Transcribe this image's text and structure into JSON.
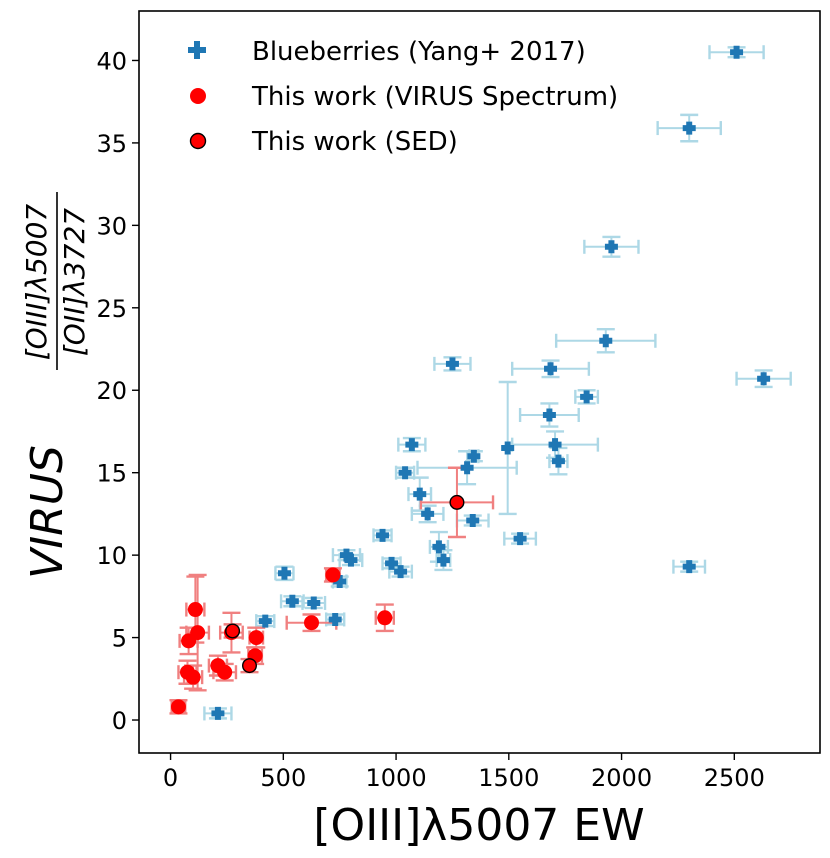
{
  "chart_data": {
    "type": "scatter",
    "xlabel": "[OIII]λ5007 EW",
    "ylabel_main": "VIRUS",
    "ylabel_num": "[OIII]λ5007",
    "ylabel_den": "[OII]λ3727",
    "xlim": [
      -140,
      2880
    ],
    "ylim": [
      -2,
      43
    ],
    "xticks": [
      0,
      500,
      1000,
      1500,
      2000,
      2500
    ],
    "yticks": [
      0,
      5,
      10,
      15,
      20,
      25,
      30,
      35,
      40
    ],
    "legend_position": "top-left",
    "series": [
      {
        "name": "Blueberries (Yang+ 2017)",
        "marker": "plus",
        "color": "#1f77b4",
        "err_color": "#add8e6",
        "points": [
          {
            "x": 2510,
            "y": 40.5,
            "xerr": 120,
            "yerr": 0.3
          },
          {
            "x": 2300,
            "y": 35.9,
            "xerr": 140,
            "yerr": 0.8
          },
          {
            "x": 1955,
            "y": 28.7,
            "xerr": 120,
            "yerr": 0.6
          },
          {
            "x": 1930,
            "y": 23.0,
            "xerr": 220,
            "yerr": 0.7
          },
          {
            "x": 2630,
            "y": 20.7,
            "xerr": 120,
            "yerr": 0.5
          },
          {
            "x": 1250,
            "y": 21.6,
            "xerr": 80,
            "yerr": 0.4
          },
          {
            "x": 1685,
            "y": 21.3,
            "xerr": 170,
            "yerr": 0.5
          },
          {
            "x": 1845,
            "y": 19.6,
            "xerr": 50,
            "yerr": 0.4
          },
          {
            "x": 1680,
            "y": 18.5,
            "xerr": 130,
            "yerr": 0.7
          },
          {
            "x": 1070,
            "y": 16.7,
            "xerr": 60,
            "yerr": 0.4
          },
          {
            "x": 1495,
            "y": 16.5,
            "xerr": 0,
            "yerr": 4.0
          },
          {
            "x": 1705,
            "y": 16.7,
            "xerr": 190,
            "yerr": 0.8
          },
          {
            "x": 1720,
            "y": 15.7,
            "xerr": 40,
            "yerr": 0.8
          },
          {
            "x": 1345,
            "y": 16.0,
            "xerr": 20,
            "yerr": 0.3
          },
          {
            "x": 1315,
            "y": 15.3,
            "xerr": 220,
            "yerr": 1.0
          },
          {
            "x": 1040,
            "y": 15.0,
            "xerr": 40,
            "yerr": 0.3
          },
          {
            "x": 1105,
            "y": 13.7,
            "xerr": 50,
            "yerr": 1.0
          },
          {
            "x": 1140,
            "y": 12.5,
            "xerr": 70,
            "yerr": 0.5
          },
          {
            "x": 1340,
            "y": 12.1,
            "xerr": 70,
            "yerr": 0.3
          },
          {
            "x": 1550,
            "y": 11.0,
            "xerr": 70,
            "yerr": 0.3
          },
          {
            "x": 940,
            "y": 11.2,
            "xerr": 40,
            "yerr": 0.3
          },
          {
            "x": 1190,
            "y": 10.5,
            "xerr": 40,
            "yerr": 0.9
          },
          {
            "x": 1210,
            "y": 9.7,
            "xerr": 30,
            "yerr": 0.6
          },
          {
            "x": 780,
            "y": 10.0,
            "xerr": 60,
            "yerr": 0.3
          },
          {
            "x": 800,
            "y": 9.7,
            "xerr": 50,
            "yerr": 0.3
          },
          {
            "x": 980,
            "y": 9.5,
            "xerr": 40,
            "yerr": 0.3
          },
          {
            "x": 1020,
            "y": 9.0,
            "xerr": 50,
            "yerr": 0.3
          },
          {
            "x": 2300,
            "y": 9.3,
            "xerr": 70,
            "yerr": 0.3
          },
          {
            "x": 505,
            "y": 8.9,
            "xerr": 40,
            "yerr": 0.4
          },
          {
            "x": 750,
            "y": 8.4,
            "xerr": 30,
            "yerr": 0.3
          },
          {
            "x": 540,
            "y": 7.2,
            "xerr": 50,
            "yerr": 0.3
          },
          {
            "x": 635,
            "y": 7.1,
            "xerr": 50,
            "yerr": 0.3
          },
          {
            "x": 730,
            "y": 6.1,
            "xerr": 40,
            "yerr": 0.3
          },
          {
            "x": 420,
            "y": 6.0,
            "xerr": 40,
            "yerr": 0.3
          },
          {
            "x": 210,
            "y": 0.4,
            "xerr": 60,
            "yerr": 0.3
          }
        ]
      },
      {
        "name": "This work (VIRUS Spectrum)",
        "marker": "circle",
        "color": "#ff0000",
        "err_color": "#f08080",
        "points": [
          {
            "x": 35,
            "y": 0.8,
            "xerr": 30,
            "yerr": 0.4
          },
          {
            "x": 75,
            "y": 2.9,
            "xerr": 40,
            "yerr": 0.7
          },
          {
            "x": 100,
            "y": 2.6,
            "xerr": 40,
            "yerr": 0.7
          },
          {
            "x": 80,
            "y": 4.8,
            "xerr": 40,
            "yerr": 0.8
          },
          {
            "x": 110,
            "y": 6.7,
            "xerr": 40,
            "yerr": 2.0
          },
          {
            "x": 120,
            "y": 5.3,
            "xerr": 50,
            "yerr": 3.5
          },
          {
            "x": 210,
            "y": 3.3,
            "xerr": 40,
            "yerr": 0.6
          },
          {
            "x": 240,
            "y": 2.9,
            "xerr": 50,
            "yerr": 0.5
          },
          {
            "x": 270,
            "y": 5.3,
            "xerr": 50,
            "yerr": 1.2
          },
          {
            "x": 380,
            "y": 5.0,
            "xerr": 30,
            "yerr": 0.6
          },
          {
            "x": 375,
            "y": 3.9,
            "xerr": 30,
            "yerr": 0.5
          },
          {
            "x": 625,
            "y": 5.9,
            "xerr": 110,
            "yerr": 0.5
          },
          {
            "x": 720,
            "y": 8.8,
            "xerr": 30,
            "yerr": 0.4
          },
          {
            "x": 950,
            "y": 6.2,
            "xerr": 40,
            "yerr": 0.8
          }
        ]
      },
      {
        "name": "This work (SED)",
        "marker": "circle-edge",
        "color": "#ff0000",
        "edge_color": "#000000",
        "err_color": "#f08080",
        "points": [
          {
            "x": 1270,
            "y": 13.2,
            "xerr": 160,
            "yerr": 2.1
          },
          {
            "x": 275,
            "y": 5.4,
            "xerr": 20,
            "yerr": 0.4
          },
          {
            "x": 350,
            "y": 3.3,
            "xerr": 20,
            "yerr": 0.4
          }
        ]
      }
    ]
  }
}
